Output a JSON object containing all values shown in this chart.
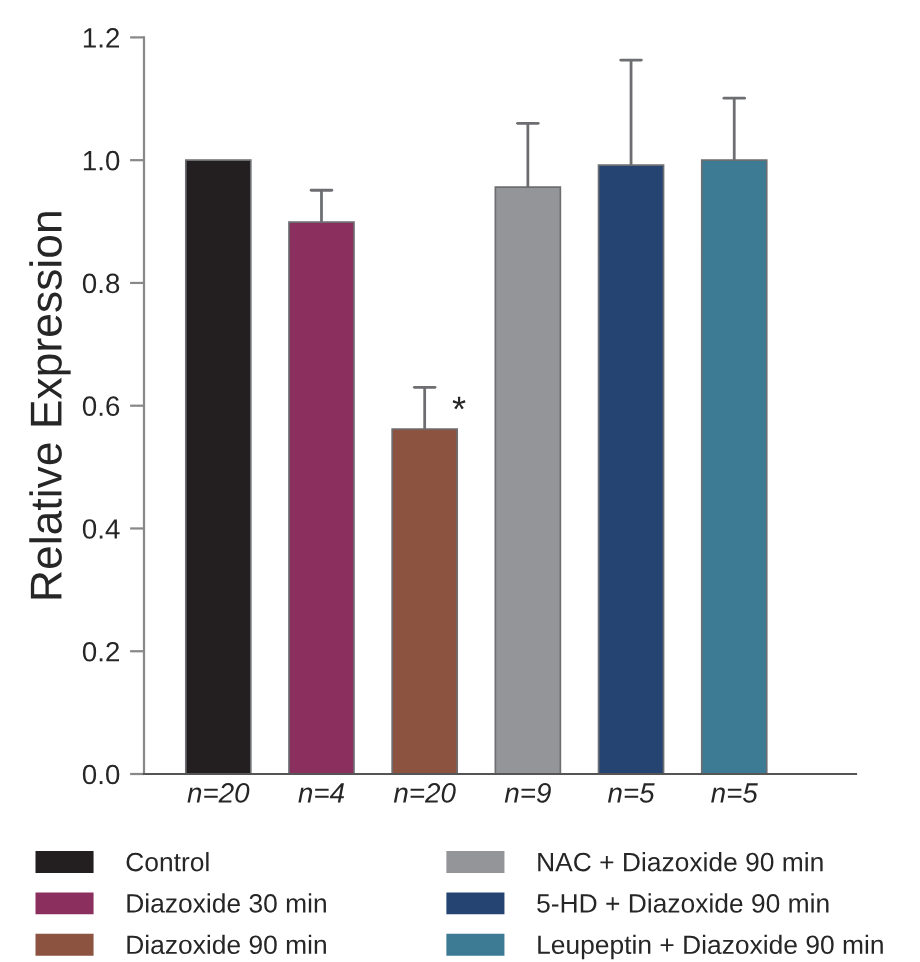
{
  "chart_data": {
    "type": "bar",
    "ylabel": "Relative Expression",
    "categories": [
      "n=20",
      "n=4",
      "n=20",
      "n=9",
      "n=5",
      "n=5"
    ],
    "series": [
      {
        "name": "Control",
        "color": "#231f20",
        "values": [
          1.0,
          null,
          null,
          null,
          null,
          null
        ],
        "errors": [
          null,
          null,
          null,
          null,
          null,
          null
        ]
      },
      {
        "name": "Diazoxide 30 min",
        "color": "#8b2f5e",
        "values": [
          null,
          0.899,
          null,
          null,
          null,
          null
        ],
        "errors": [
          null,
          [
            0.899,
            0.951
          ],
          null,
          null,
          null,
          null
        ]
      },
      {
        "name": "Diazoxide 90 min",
        "color": "#8c5340",
        "values": [
          null,
          null,
          0.562,
          null,
          null,
          null
        ],
        "errors": [
          null,
          null,
          [
            0.562,
            0.63
          ],
          null,
          null,
          null
        ]
      },
      {
        "name": "NAC + Diazoxide 90 min",
        "color": "#939598",
        "values": [
          null,
          null,
          null,
          0.956,
          null,
          null
        ],
        "errors": [
          null,
          null,
          null,
          [
            0.956,
            1.06
          ],
          null,
          null
        ]
      },
      {
        "name": "5-HD + Diazoxide 90 min",
        "color": "#254472",
        "values": [
          null,
          null,
          null,
          null,
          0.992,
          null
        ],
        "errors": [
          null,
          null,
          null,
          null,
          [
            0.992,
            1.163
          ],
          null
        ]
      },
      {
        "name": "Leupeptin + Diazoxide 90 min",
        "color": "#3d7a94",
        "values": [
          null,
          null,
          null,
          null,
          null,
          1.0
        ],
        "errors": [
          null,
          null,
          null,
          null,
          null,
          [
            1.0,
            1.101
          ]
        ]
      }
    ],
    "annotations": [
      "*"
    ],
    "ylim": [
      0,
      1.2
    ],
    "yticks": [
      {
        "value": 0,
        "label": "0.0"
      },
      0.2,
      0.4,
      0.6,
      0.8,
      {
        "value": 1,
        "label": "1.0"
      },
      1.2
    ],
    "grid": false,
    "legend": "bottom"
  }
}
